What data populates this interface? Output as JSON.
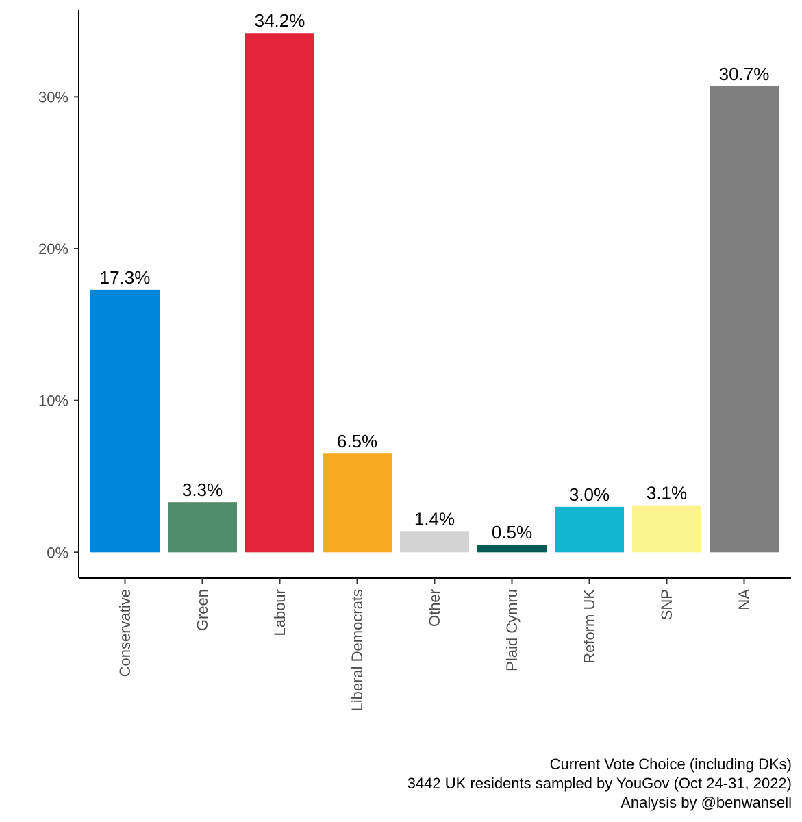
{
  "chart_data": {
    "type": "bar",
    "categories": [
      "Conservative",
      "Green",
      "Labour",
      "Liberal Democrats",
      "Other",
      "Plaid Cymru",
      "Reform UK",
      "SNP",
      "NA"
    ],
    "values": [
      17.3,
      3.3,
      34.2,
      6.5,
      1.4,
      0.5,
      3.0,
      3.1,
      30.7
    ],
    "value_labels": [
      "17.3%",
      "3.3%",
      "34.2%",
      "6.5%",
      "1.4%",
      "0.5%",
      "3.0%",
      "3.1%",
      "30.7%"
    ],
    "colors": [
      "#0087DC",
      "#528D6B",
      "#E4233A",
      "#F8A91F",
      "#D3D3D3",
      "#005B54",
      "#12B6CF",
      "#FDF38E",
      "#7F7F7F"
    ],
    "y_ticks": [
      0,
      10,
      20,
      30
    ],
    "y_tick_labels": [
      "0%",
      "10%",
      "20%",
      "30%"
    ],
    "ylim": [
      -1.7,
      35.7
    ],
    "xlabel": "",
    "ylabel": "",
    "grid": false,
    "legend": "none"
  },
  "caption": {
    "line1": "Current Vote Choice (including DKs)",
    "line2": "3442 UK residents sampled by YouGov (Oct 24-31, 2022)",
    "line3": "Analysis by @benwansell"
  }
}
